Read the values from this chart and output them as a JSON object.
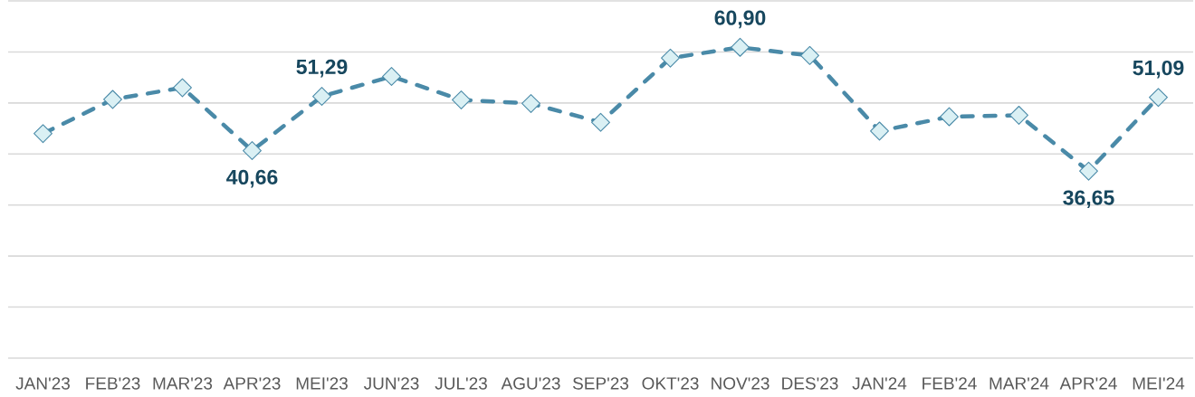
{
  "chart_data": {
    "type": "line",
    "categories": [
      "JAN'23",
      "FEB'23",
      "MAR'23",
      "APR'23",
      "MEI'23",
      "JUN'23",
      "JUL'23",
      "AGU'23",
      "SEP'23",
      "OKT'23",
      "NOV'23",
      "DES'23",
      "JAN'24",
      "FEB'24",
      "MAR'24",
      "APR'24",
      "MEI'24"
    ],
    "series": [
      {
        "color": "#4a8aa8",
        "values": [
          44.0,
          50.7,
          53.0,
          40.66,
          51.29,
          55.2,
          50.6,
          49.9,
          46.2,
          58.8,
          60.9,
          59.3,
          44.5,
          47.3,
          47.6,
          36.65,
          51.09
        ],
        "value_labels": [
          null,
          null,
          null,
          "40,66",
          "51,29",
          null,
          null,
          null,
          null,
          null,
          "60,90",
          null,
          null,
          null,
          null,
          "36,65",
          "51,09"
        ]
      }
    ],
    "ylim": [
      0,
      70
    ],
    "yticks": [
      {
        "value": 0,
        "label": null
      },
      {
        "value": 10,
        "label": null
      },
      {
        "value": 20,
        "label": null
      },
      {
        "value": 30,
        "label": null
      },
      {
        "value": 40,
        "label": null
      },
      {
        "value": 50,
        "label": null
      },
      {
        "value": 60,
        "label": null
      },
      {
        "value": 70,
        "label": null
      }
    ],
    "tick_labels": "x",
    "grid": "y",
    "marker": "diamond",
    "line_style": "dashed"
  }
}
